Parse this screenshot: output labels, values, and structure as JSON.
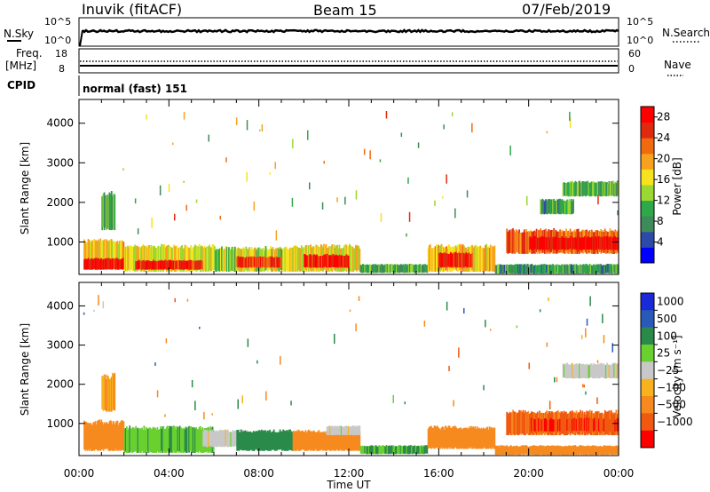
{
  "header": {
    "station": "Inuvik (fitACF)",
    "beam": "Beam 15",
    "date": "07/Feb/2019"
  },
  "strips": {
    "nsky_label": "N.Sky",
    "nsky_ticks": [
      "10^5",
      "10^0"
    ],
    "nsearch_label": "N.Search",
    "freq_label_line1": "Freq.",
    "freq_label_line2": "[MHz]",
    "freq_ticks": [
      "18",
      "8"
    ],
    "nave_ticks": [
      "60",
      "0"
    ],
    "nave_label": "Nave",
    "cpid_label": "CPID",
    "cpid_text": "normal (fast) 151"
  },
  "colors": {
    "power_scale": [
      "#0000ff",
      "#2e4aa8",
      "#3f8a5a",
      "#2fa84a",
      "#9bd832",
      "#f7e21e",
      "#f7a21e",
      "#f06a10",
      "#e02a10",
      "#ff0000"
    ],
    "velocity_scale": [
      "#1a2ad8",
      "#2a5ab8",
      "#2a8a4a",
      "#6ad030",
      "#c8c8c8",
      "#f7b21e",
      "#f78a1e",
      "#f05a10",
      "#ff0000"
    ]
  },
  "chart_data": [
    {
      "type": "heatmap",
      "title": "Power",
      "xlabel": "Time UT",
      "ylabel": "Slant Range [km]",
      "x_ticks": [
        "00:00",
        "04:00",
        "08:00",
        "12:00",
        "16:00",
        "20:00",
        "00:00"
      ],
      "y_ticks": [
        1000,
        2000,
        3000,
        4000
      ],
      "ylim": [
        180,
        4600
      ],
      "colorbar_label": "Power [dB]",
      "colorbar_ticks": [
        "4",
        "8",
        "12",
        "16",
        "20",
        "24",
        "28"
      ],
      "colorbar_range": [
        0,
        30
      ],
      "regions": [
        {
          "t0": 0.2,
          "t1": 2.0,
          "r0": 300,
          "r1": 1100,
          "value": 18
        },
        {
          "t0": 0.2,
          "t1": 2.0,
          "r0": 300,
          "r1": 600,
          "value": 27
        },
        {
          "t0": 1.0,
          "t1": 1.6,
          "r0": 1300,
          "r1": 2300,
          "value": 10
        },
        {
          "t0": 2.0,
          "t1": 6.0,
          "r0": 250,
          "r1": 950,
          "value": 16
        },
        {
          "t0": 2.5,
          "t1": 5.5,
          "r0": 300,
          "r1": 550,
          "value": 26
        },
        {
          "t0": 6.0,
          "t1": 9.5,
          "r0": 250,
          "r1": 900,
          "value": 15
        },
        {
          "t0": 7.0,
          "t1": 9.0,
          "r0": 350,
          "r1": 650,
          "value": 25
        },
        {
          "t0": 9.5,
          "t1": 12.5,
          "r0": 250,
          "r1": 950,
          "value": 17
        },
        {
          "t0": 10.0,
          "t1": 12.0,
          "r0": 350,
          "r1": 700,
          "value": 27
        },
        {
          "t0": 12.5,
          "t1": 15.5,
          "r0": 220,
          "r1": 450,
          "value": 10
        },
        {
          "t0": 15.5,
          "t1": 18.5,
          "r0": 250,
          "r1": 950,
          "value": 18
        },
        {
          "t0": 16.0,
          "t1": 17.5,
          "r0": 350,
          "r1": 750,
          "value": 27
        },
        {
          "t0": 18.5,
          "t1": 24.0,
          "r0": 200,
          "r1": 450,
          "value": 9
        },
        {
          "t0": 19.0,
          "t1": 24.0,
          "r0": 700,
          "r1": 1350,
          "value": 23
        },
        {
          "t0": 20.0,
          "t1": 24.0,
          "r0": 800,
          "r1": 1150,
          "value": 28
        },
        {
          "t0": 21.5,
          "t1": 24.0,
          "r0": 2150,
          "r1": 2550,
          "value": 11
        },
        {
          "t0": 20.5,
          "t1": 22.0,
          "r0": 1700,
          "r1": 2100,
          "value": 9
        }
      ]
    },
    {
      "type": "heatmap",
      "title": "Velocity",
      "xlabel": "Time UT",
      "ylabel": "Slant Range [km]",
      "x_ticks": [
        "00:00",
        "04:00",
        "08:00",
        "12:00",
        "16:00",
        "20:00",
        "00:00"
      ],
      "y_ticks": [
        1000,
        2000,
        3000,
        4000
      ],
      "ylim": [
        180,
        4600
      ],
      "colorbar_label": "Velocity [m s⁻¹]",
      "colorbar_ticks": [
        "1000",
        "500",
        "100",
        "25",
        "−25",
        "−100",
        "−500",
        "−1000"
      ],
      "regions": [
        {
          "t0": 0.2,
          "t1": 2.0,
          "r0": 300,
          "r1": 1100,
          "value": -200
        },
        {
          "t0": 1.0,
          "t1": 1.6,
          "r0": 1300,
          "r1": 2300,
          "value": -100
        },
        {
          "t0": 2.0,
          "t1": 6.0,
          "r0": 250,
          "r1": 950,
          "value": 80
        },
        {
          "t0": 5.5,
          "t1": 7.5,
          "r0": 400,
          "r1": 850,
          "value": 0
        },
        {
          "t0": 7.0,
          "t1": 9.5,
          "r0": 300,
          "r1": 850,
          "value": 150
        },
        {
          "t0": 9.5,
          "t1": 12.5,
          "r0": 300,
          "r1": 850,
          "value": -200
        },
        {
          "t0": 11.0,
          "t1": 12.5,
          "r0": 700,
          "r1": 950,
          "value": 0
        },
        {
          "t0": 12.5,
          "t1": 15.5,
          "r0": 220,
          "r1": 450,
          "value": 100
        },
        {
          "t0": 15.5,
          "t1": 18.5,
          "r0": 350,
          "r1": 950,
          "value": -300
        },
        {
          "t0": 18.5,
          "t1": 24.0,
          "r0": 200,
          "r1": 450,
          "value": -150
        },
        {
          "t0": 19.0,
          "t1": 24.0,
          "r0": 700,
          "r1": 1350,
          "value": -600
        },
        {
          "t0": 20.0,
          "t1": 24.0,
          "r0": 800,
          "r1": 1150,
          "value": -900
        },
        {
          "t0": 21.5,
          "t1": 24.0,
          "r0": 2150,
          "r1": 2550,
          "value": 0
        }
      ]
    }
  ]
}
